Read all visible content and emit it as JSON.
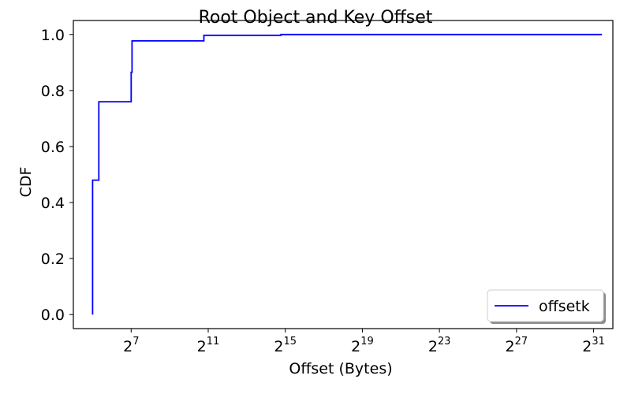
{
  "chart_data": {
    "type": "line",
    "title": "Root Object and Key Offset",
    "xlabel": "Offset (Bytes)",
    "ylabel": "CDF",
    "x_scale": "log2",
    "xlim": [
      16,
      4294967296
    ],
    "ylim": [
      -0.05,
      1.05
    ],
    "x_ticks": [
      {
        "base": "2",
        "exp": "7",
        "value": 128
      },
      {
        "base": "2",
        "exp": "11",
        "value": 2048
      },
      {
        "base": "2",
        "exp": "15",
        "value": 32768
      },
      {
        "base": "2",
        "exp": "19",
        "value": 524288
      },
      {
        "base": "2",
        "exp": "23",
        "value": 8388608
      },
      {
        "base": "2",
        "exp": "27",
        "value": 134217728
      },
      {
        "base": "2",
        "exp": "31",
        "value": 2147483648
      }
    ],
    "y_ticks": [
      "0.0",
      "0.2",
      "0.4",
      "0.6",
      "0.8",
      "1.0"
    ],
    "y_tick_values": [
      0,
      0.2,
      0.4,
      0.6,
      0.8,
      1.0
    ],
    "legend_position": "lower-right",
    "grid": false,
    "series": [
      {
        "name": "offsetk",
        "color": "#0000ff",
        "step": true,
        "x": [
          32,
          32,
          36,
          36,
          40,
          40,
          128,
          128,
          132,
          132,
          1750,
          1750,
          28000,
          28000,
          2900000000
        ],
        "y": [
          0.0,
          0.48,
          0.48,
          0.48,
          0.48,
          0.76,
          0.76,
          0.865,
          0.865,
          0.977,
          0.977,
          0.997,
          0.997,
          1.0,
          1.0
        ]
      }
    ]
  }
}
